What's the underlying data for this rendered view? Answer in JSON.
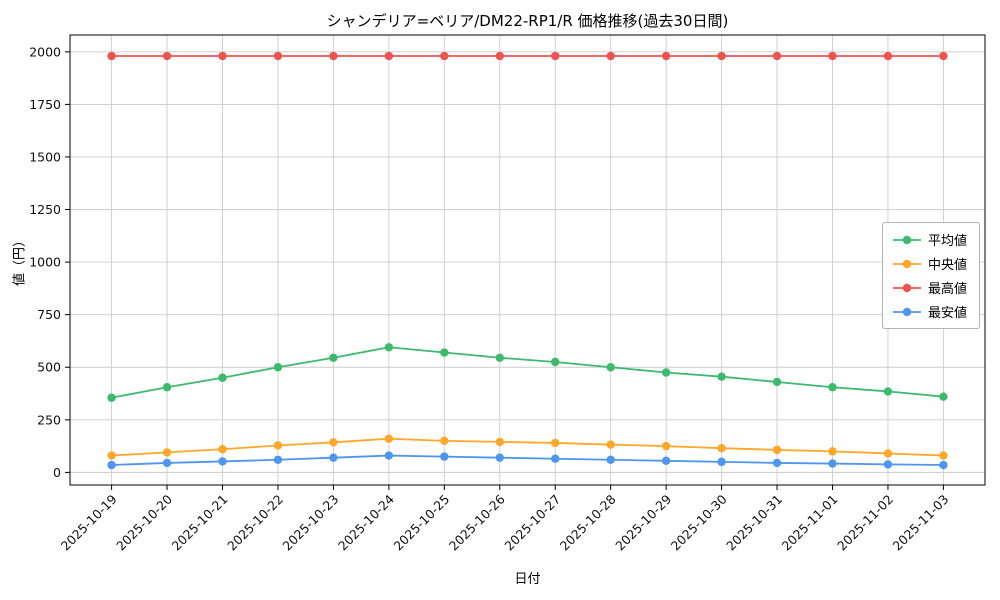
{
  "chart_data": {
    "type": "line",
    "title": "シャンデリア=ベリア/DM22-RP1/R 価格推移(過去30日間)",
    "xlabel": "日付",
    "ylabel": "値（円）",
    "x": [
      "2025-10-19",
      "2025-10-20",
      "2025-10-21",
      "2025-10-22",
      "2025-10-23",
      "2025-10-24",
      "2025-10-25",
      "2025-10-26",
      "2025-10-27",
      "2025-10-28",
      "2025-10-29",
      "2025-10-30",
      "2025-10-31",
      "2025-11-01",
      "2025-11-02",
      "2025-11-03"
    ],
    "ylim": [
      -60,
      2080
    ],
    "yticks": [
      0,
      250,
      500,
      750,
      1000,
      1250,
      1500,
      1750,
      2000
    ],
    "grid": true,
    "legend_position": "center right",
    "series": [
      {
        "name": "平均値",
        "color": "#3cba6e",
        "values": [
          355,
          405,
          450,
          500,
          545,
          595,
          570,
          545,
          525,
          500,
          475,
          455,
          430,
          405,
          385,
          360
        ]
      },
      {
        "name": "中央値",
        "color": "#ffa728",
        "values": [
          80,
          95,
          110,
          128,
          143,
          160,
          150,
          145,
          140,
          132,
          125,
          115,
          107,
          100,
          90,
          80
        ]
      },
      {
        "name": "最高値",
        "color": "#ef5350",
        "values": [
          1980,
          1980,
          1980,
          1980,
          1980,
          1980,
          1980,
          1980,
          1980,
          1980,
          1980,
          1980,
          1980,
          1980,
          1980,
          1980
        ]
      },
      {
        "name": "最安値",
        "color": "#4e95ed",
        "values": [
          35,
          45,
          52,
          60,
          70,
          80,
          75,
          70,
          65,
          60,
          55,
          50,
          45,
          42,
          38,
          35
        ]
      }
    ]
  }
}
